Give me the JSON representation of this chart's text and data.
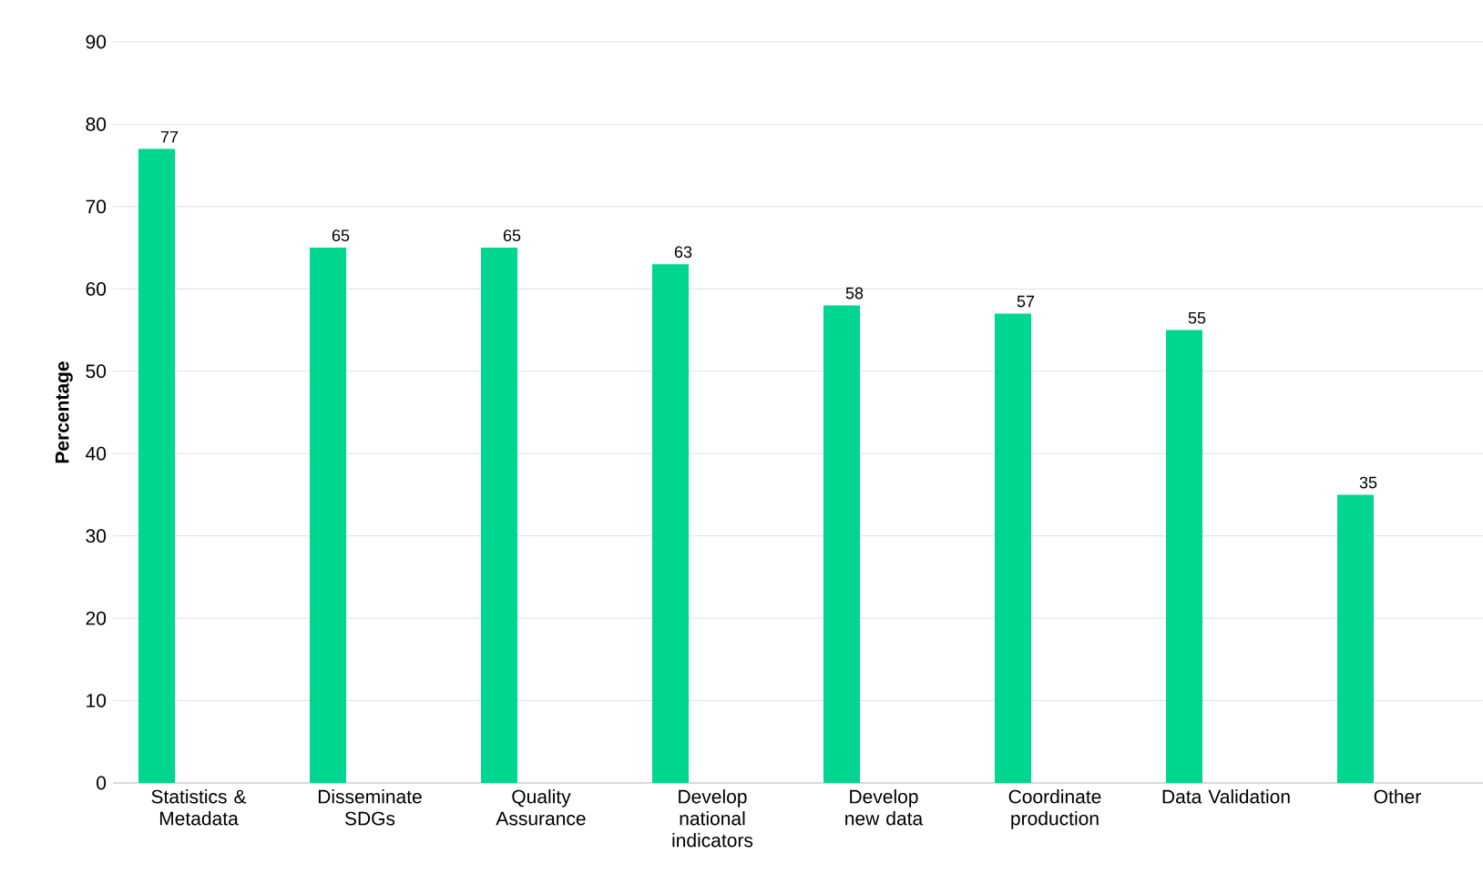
{
  "chart_data": {
    "type": "bar",
    "ylabel": "Percentage",
    "categories": [
      "Statistics & Metadata",
      "Disseminate SDGs",
      "Quality Assurance",
      "Develop national indicators",
      "Develop new data",
      "Coordinate production",
      "Data Validation",
      "Other"
    ],
    "values": [
      77,
      65,
      65,
      63,
      58,
      57,
      55,
      35
    ],
    "color": "#00d690",
    "ylim": [
      0,
      90
    ],
    "yticks": [
      0,
      10,
      20,
      30,
      40,
      50,
      60,
      70,
      80,
      90
    ],
    "grid": "y",
    "data_labels": true
  }
}
